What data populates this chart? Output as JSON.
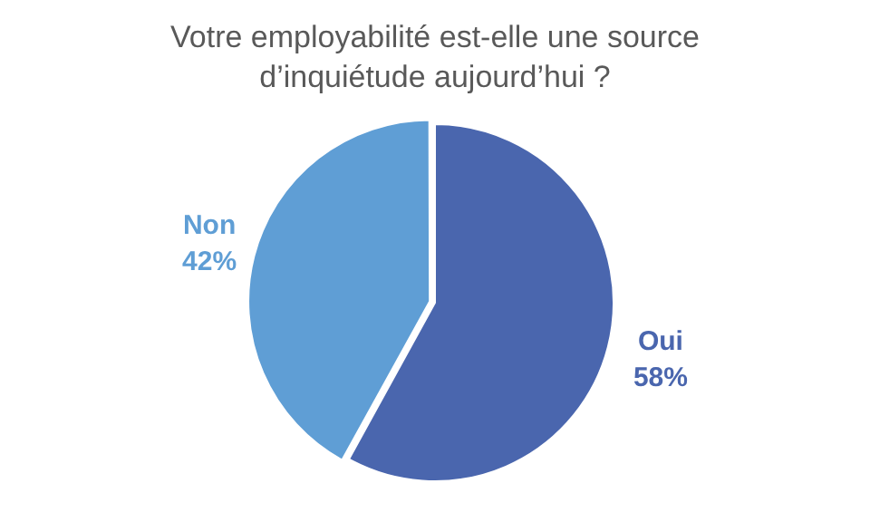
{
  "chart_data": {
    "type": "pie",
    "title": "Votre employabilité est-elle une source d’inquiétude aujourd’hui ?",
    "categories": [
      "Oui",
      "Non"
    ],
    "values": [
      58,
      42
    ],
    "colors": [
      "#4a66ae",
      "#5f9ed5"
    ],
    "value_labels": [
      "58%",
      "42%"
    ],
    "legend": false
  }
}
